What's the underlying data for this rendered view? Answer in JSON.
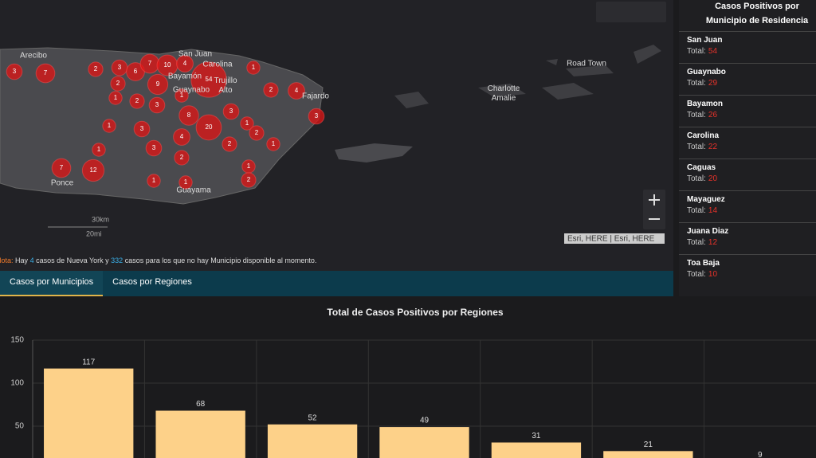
{
  "map": {
    "places": [
      "Arecibo",
      "San Juan",
      "Carolina",
      "Bayamón",
      "Trujillo Alto",
      "Guaynabo",
      "Fajardo",
      "Ponce",
      "Guayama",
      "Road Town",
      "Charlotte Amalie"
    ],
    "clusters": [
      3,
      7,
      2,
      3,
      6,
      7,
      10,
      4,
      54,
      1,
      2,
      9,
      1,
      2,
      4,
      1,
      2,
      3,
      8,
      3,
      1,
      3,
      20,
      1,
      2,
      4,
      3,
      1,
      3,
      2,
      1,
      2,
      7,
      12,
      1,
      1,
      1,
      2
    ],
    "scale": [
      "30km",
      "20mi"
    ],
    "attribution": "Esri, HERE | Esri, HERE",
    "note": {
      "label": "Nota:",
      "text1": "Hay",
      "ny": 4,
      "text2": "casos de Nueva York y",
      "unknown": 332,
      "text3": "casos para los que no hay Municipio disponible al momento."
    }
  },
  "tabs": [
    "Casos por Municipios",
    "Casos por Regiones"
  ],
  "panel": {
    "title": "Casos Positivos por Municipio de Residencia",
    "total_label": "Total:",
    "items": [
      {
        "name": "San Juan",
        "total": 54
      },
      {
        "name": "Guaynabo",
        "total": 29
      },
      {
        "name": "Bayamon",
        "total": 26
      },
      {
        "name": "Carolina",
        "total": 22
      },
      {
        "name": "Caguas",
        "total": 20
      },
      {
        "name": "Mayaguez",
        "total": 14
      },
      {
        "name": "Juana Diaz",
        "total": 12
      },
      {
        "name": "Toa Baja",
        "total": 10
      }
    ]
  },
  "chart_data": {
    "type": "bar",
    "title": "Total de Casos Positivos por Regiones",
    "categories": [
      null,
      null,
      null,
      null,
      null,
      null,
      null
    ],
    "values": [
      117,
      68,
      52,
      49,
      31,
      21,
      9
    ],
    "color": "#fdd189",
    "ylim": [
      0,
      150
    ],
    "yticks": [
      50,
      100,
      150
    ],
    "grid": true
  }
}
